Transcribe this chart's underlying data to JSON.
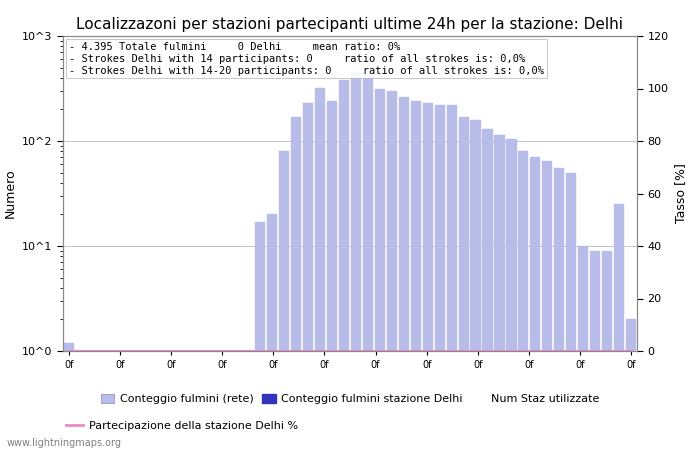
{
  "title": "Localizzazoni per stazioni partecipanti ultime 24h per la stazione: Delhi",
  "ylabel_left": "Numero",
  "ylabel_right": "Tasso [%]",
  "annotation_lines": [
    " 4.395 Totale fulmini     0 Delhi     mean ratio: 0%",
    " Strokes Delhi with 14 participants: 0     ratio of all strokes is: 0,0%",
    " Strokes Delhi with 14-20 participants: 0     ratio of all strokes is: 0,0%"
  ],
  "bar_values": [
    1.2,
    1,
    1,
    1,
    1,
    1,
    1,
    1,
    1,
    1,
    1,
    1,
    1,
    1,
    1,
    1,
    17,
    20,
    80,
    170,
    230,
    320,
    240,
    380,
    450,
    420,
    310,
    300,
    260,
    240,
    230,
    220,
    220,
    170,
    160,
    130,
    115,
    105,
    80,
    70,
    65,
    55,
    50,
    10,
    9,
    9,
    25,
    2
  ],
  "bar_color_light": "#b8bce8",
  "bar_color_dark": "#3333bb",
  "line_color": "#ee88cc",
  "background_color": "#ffffff",
  "grid_color": "#aaaaaa",
  "watermark": "www.lightningmaps.org",
  "legend_labels": [
    "Conteggio fulmini (rete)",
    "Conteggio fulmini stazione Delhi",
    "Num Staz utilizzate",
    "Partecipazione della stazione Delhi %"
  ],
  "title_fontsize": 11,
  "annotation_fontsize": 7.5,
  "axis_fontsize": 9,
  "num_xtick_labels": 12,
  "xtick_label": "0f",
  "right_yticks": [
    0,
    20,
    40,
    60,
    80,
    100,
    120
  ]
}
